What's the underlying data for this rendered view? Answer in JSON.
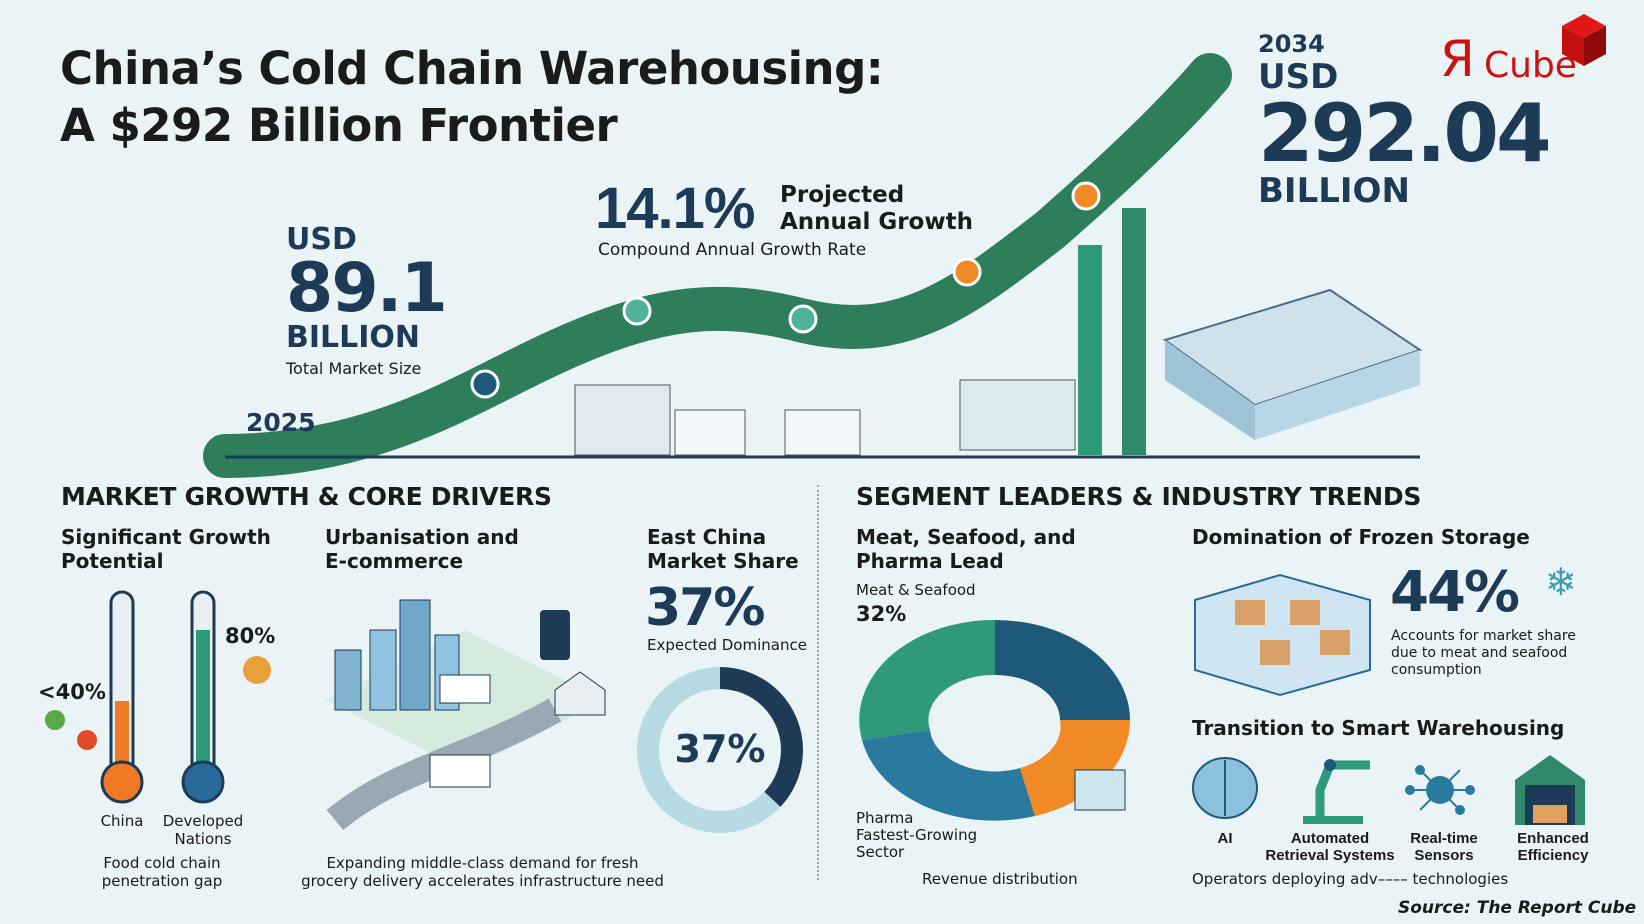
{
  "header": {
    "title_line1": "China’s Cold Chain Warehousing:",
    "title_line2": "A $292 Billion Frontier"
  },
  "logo": {
    "text_r": "Я",
    "text_cube": "Cube",
    "color": "#cc1111"
  },
  "start": {
    "year": "2025",
    "currency": "USD",
    "value": "89.1",
    "unit": "BILLION",
    "caption": "Total Market Size"
  },
  "cagr": {
    "value": "14.1%",
    "label_line1": "Projected",
    "label_line2": "Annual Growth",
    "caption": "Compound Annual Growth Rate"
  },
  "end": {
    "year": "2034",
    "currency": "USD",
    "value": "292.04",
    "unit": "BILLION"
  },
  "left_section": {
    "title": "MARKET GROWTH & CORE DRIVERS",
    "growth": {
      "title_line1": "Significant Growth",
      "title_line2": "Potential",
      "china_value": "<40%",
      "developed_value": "80%",
      "china_level": 0.4,
      "developed_level": 0.8,
      "china_label": "China",
      "developed_label_line1": "Developed",
      "developed_label_line2": "Nations",
      "caption_line1": "Food cold chain",
      "caption_line2": "penetration gap"
    },
    "urban": {
      "title_line1": "Urbanisation and",
      "title_line2": "E-commerce",
      "caption_line1": "Expanding middle-class demand for fresh",
      "caption_line2": "grocery delivery accelerates infrastructure need"
    },
    "east": {
      "title_line1": "East China",
      "title_line2": "Market Share",
      "value": "37%",
      "caption": "Expected Dominance",
      "donut_value": "37%",
      "share": 0.37
    }
  },
  "right_section": {
    "title": "SEGMENT LEADERS & INDUSTRY TRENDS",
    "meat": {
      "title_line1": "Meat, Seafood, and",
      "title_line2": "Pharma Lead",
      "segment_label": "Meat & Seafood",
      "segment_value": "32%",
      "pharma_line1": "Pharma",
      "pharma_line2": "Fastest-Growing",
      "pharma_line3": "Sector",
      "caption": "Revenue distribution"
    },
    "frozen": {
      "title": "Domination of Frozen Storage",
      "value": "44%",
      "caption_line1": "Accounts for market share",
      "caption_line2": "due to meat and seafood",
      "caption_line3": "consumption"
    },
    "smart": {
      "title": "Transition to Smart Warehousing",
      "items": [
        {
          "label_line1": "AI",
          "label_line2": ""
        },
        {
          "label_line1": "Automated",
          "label_line2": "Retrieval Systems"
        },
        {
          "label_line1": "Real-time",
          "label_line2": "Sensors"
        },
        {
          "label_line1": "Enhanced",
          "label_line2": "Efficiency"
        }
      ],
      "caption": "Operators deploying adv–––– technologies"
    }
  },
  "source": "Source: The Report Cube",
  "colors": {
    "navy": "#1d3a57",
    "green": "#2e7d5b",
    "orange": "#f08a24",
    "teal": "#3a9fb0"
  }
}
